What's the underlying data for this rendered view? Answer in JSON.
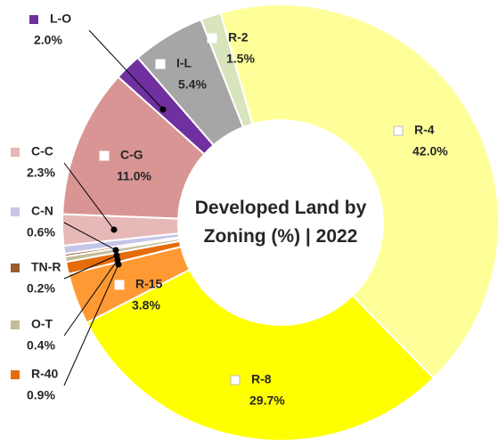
{
  "chart_data": {
    "type": "donut",
    "title": "Developed Land by Zoning (%) | 2022",
    "categories": [
      "R-4",
      "R-8",
      "R-15",
      "R-40",
      "O-T",
      "TN-R",
      "C-N",
      "C-C",
      "C-G",
      "L-O",
      "I-L",
      "R-2"
    ],
    "values": [
      42.0,
      29.7,
      3.8,
      0.9,
      0.4,
      0.2,
      0.6,
      2.3,
      11.0,
      2.0,
      5.4,
      1.5
    ],
    "value_labels": [
      "42.0%",
      "29.7%",
      "3.8%",
      "0.9%",
      "0.4%",
      "0.2%",
      "0.6%",
      "2.3%",
      "11.0%",
      "2.0%",
      "5.4%",
      "1.5%"
    ],
    "colors": [
      "#ffff99",
      "#ffff00",
      "#ff9933",
      "#e46c0a",
      "#c4bd97",
      "#9c5c2f",
      "#c5c5e8",
      "#e6b8b7",
      "#d99594",
      "#7030a0",
      "#a6a6a6",
      "#d8e4bc"
    ]
  }
}
